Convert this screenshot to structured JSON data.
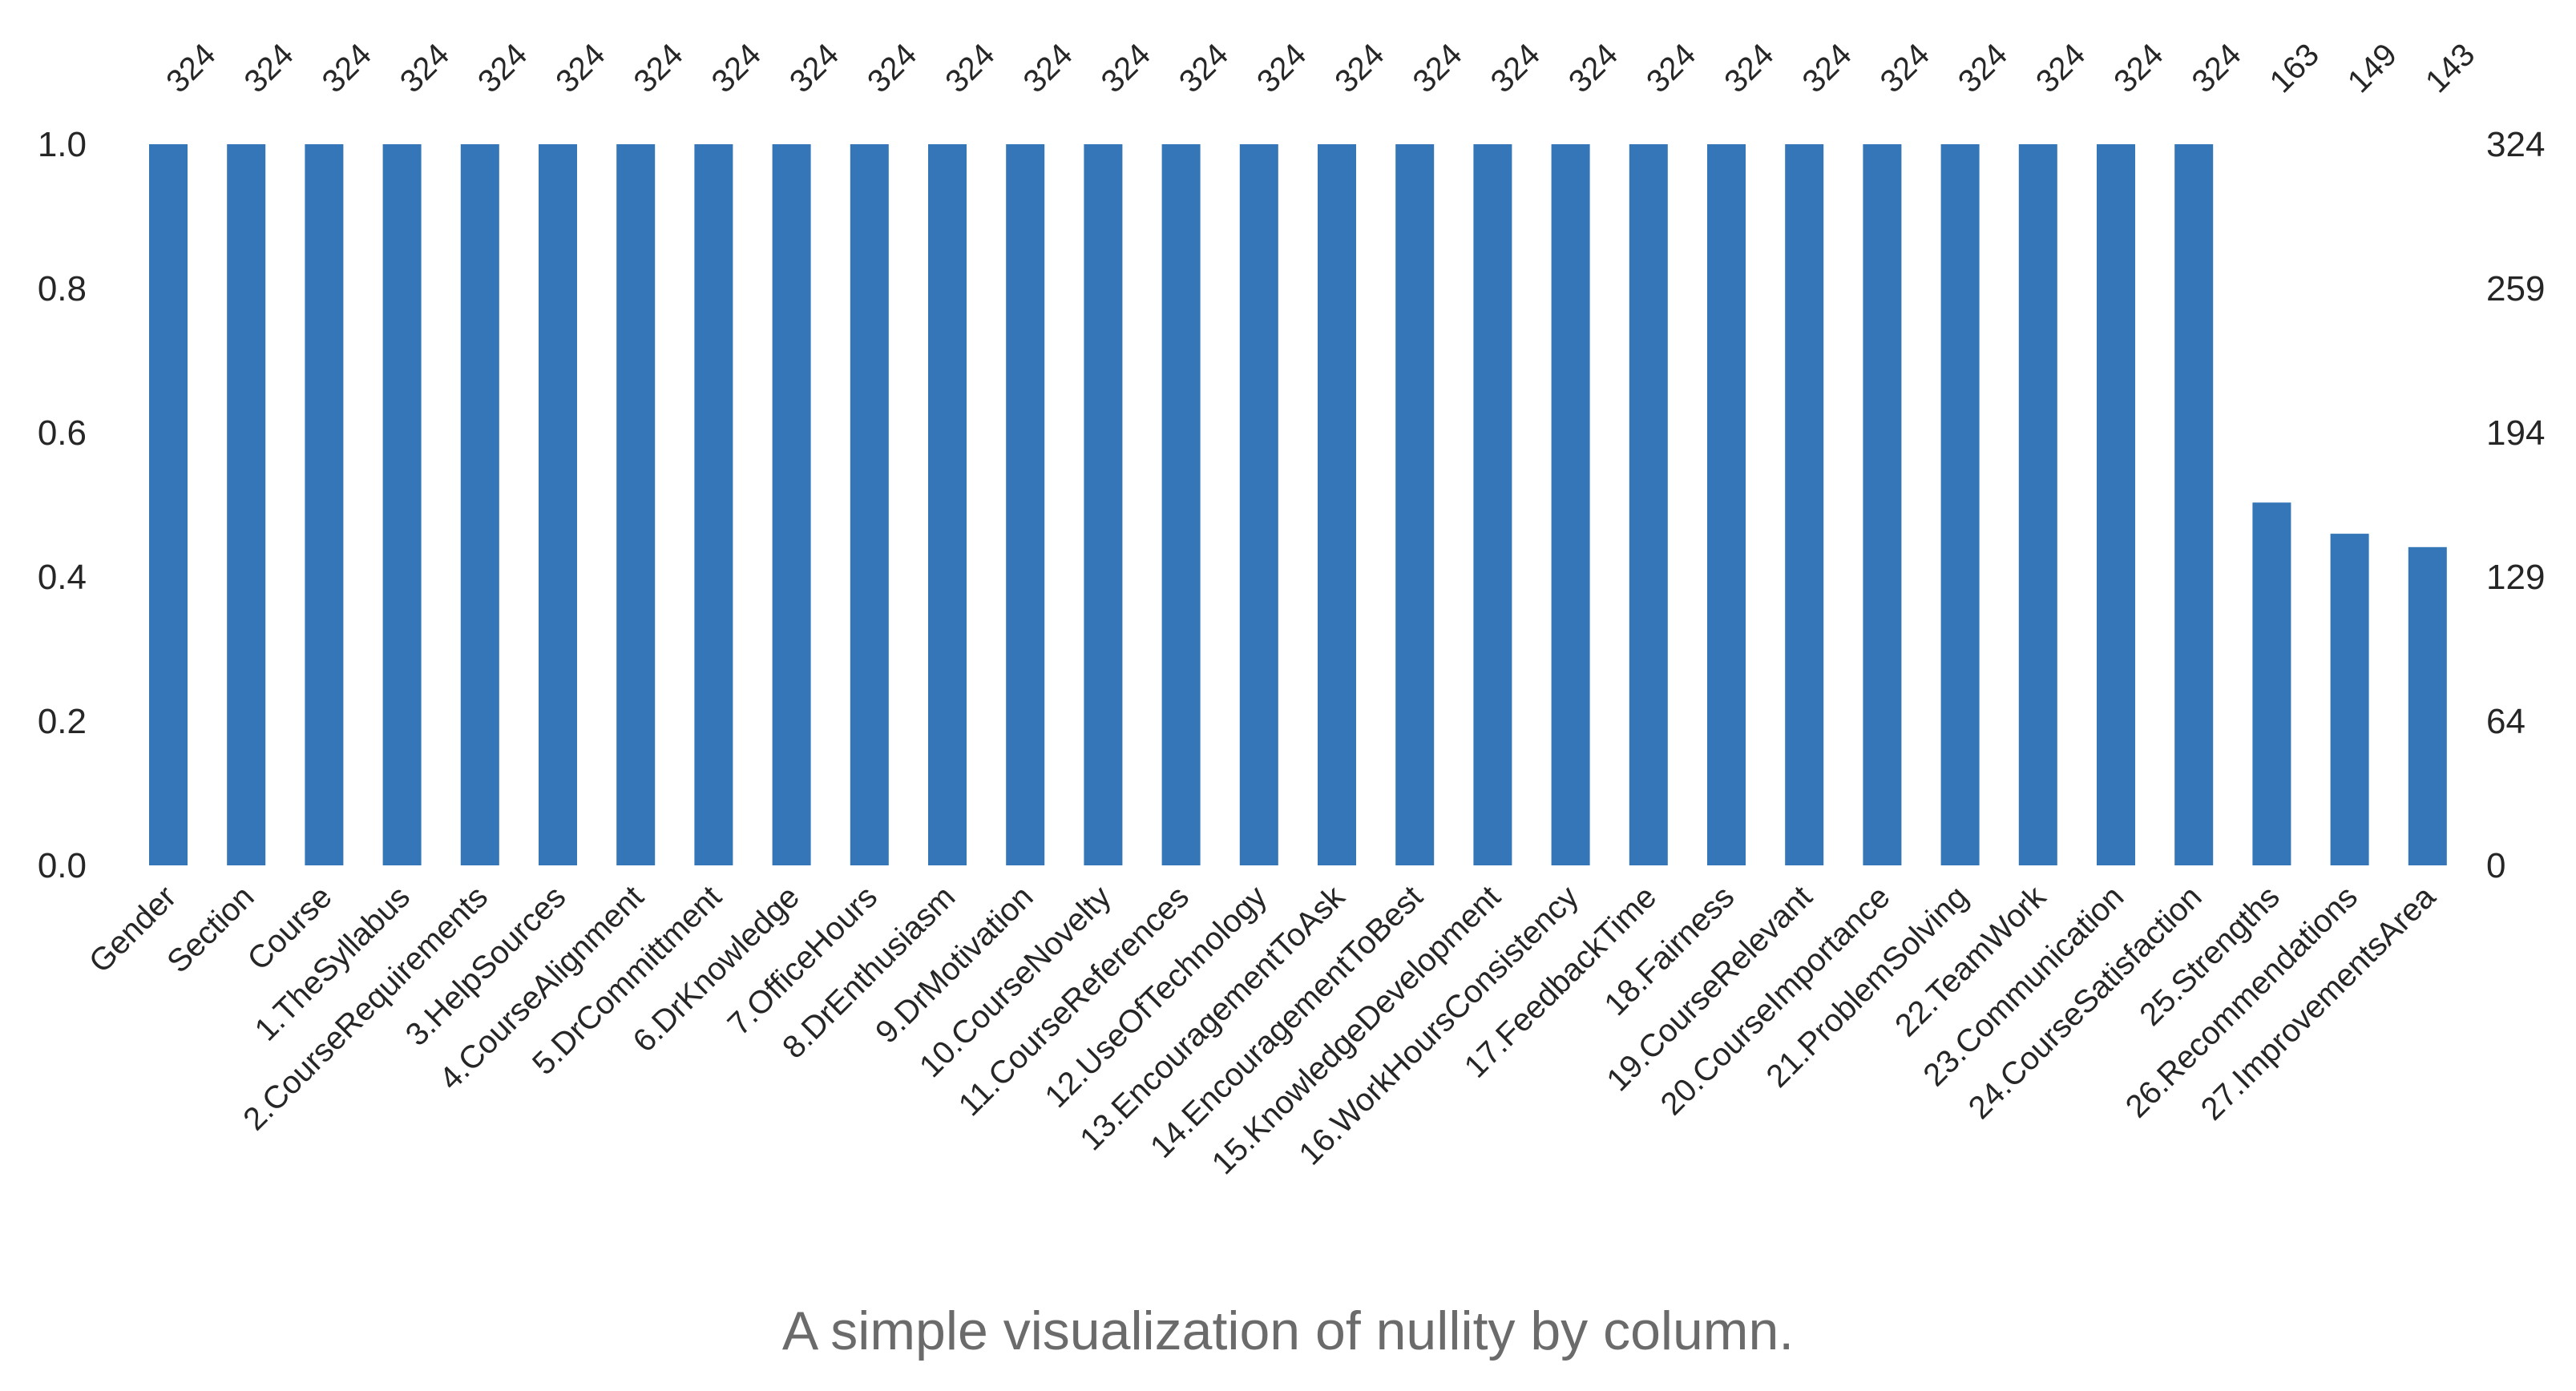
{
  "chart_data": {
    "type": "bar",
    "title": "",
    "xlabel": "",
    "ylabel": "",
    "ylim": [
      0,
      1.0
    ],
    "left_axis_ticks": [
      "0.0",
      "0.2",
      "0.4",
      "0.6",
      "0.8",
      "1.0"
    ],
    "right_axis_ticks": [
      "0",
      "64",
      "129",
      "194",
      "259",
      "324"
    ],
    "total_rows": 324,
    "grid": false,
    "categories": [
      "Gender",
      "Section",
      "Course",
      "1.TheSyllabus",
      "2.CourseRequirements",
      "3.HelpSources",
      "4.CourseAlignment",
      "5.DrCommittment",
      "6.DrKnowledge",
      "7.OfficeHours",
      "8.DrEnthusiasm",
      "9.DrMotivation",
      "10.CourseNovelty",
      "11.CourseReferences",
      "12.UseOfTechnology",
      "13.EncouragementToAsk",
      "14.EncouragementToBest",
      "15.KnowledgeDevelopment",
      "16.WorkHoursConsistency",
      "17.FeedbackTime",
      "18.Fairness",
      "19.CourseRelevant",
      "20.CourseImportance",
      "21.ProblemSolving",
      "22.TeamWork",
      "23.Communication",
      "24.CourseSatisfaction",
      "25.Strengths",
      "26.Recommendations",
      "27.ImprovementsArea"
    ],
    "values": [
      324,
      324,
      324,
      324,
      324,
      324,
      324,
      324,
      324,
      324,
      324,
      324,
      324,
      324,
      324,
      324,
      324,
      324,
      324,
      324,
      324,
      324,
      324,
      324,
      324,
      324,
      324,
      163,
      149,
      143
    ],
    "bar_color": "#3476b8"
  },
  "caption": "A simple visualization of nullity by column."
}
